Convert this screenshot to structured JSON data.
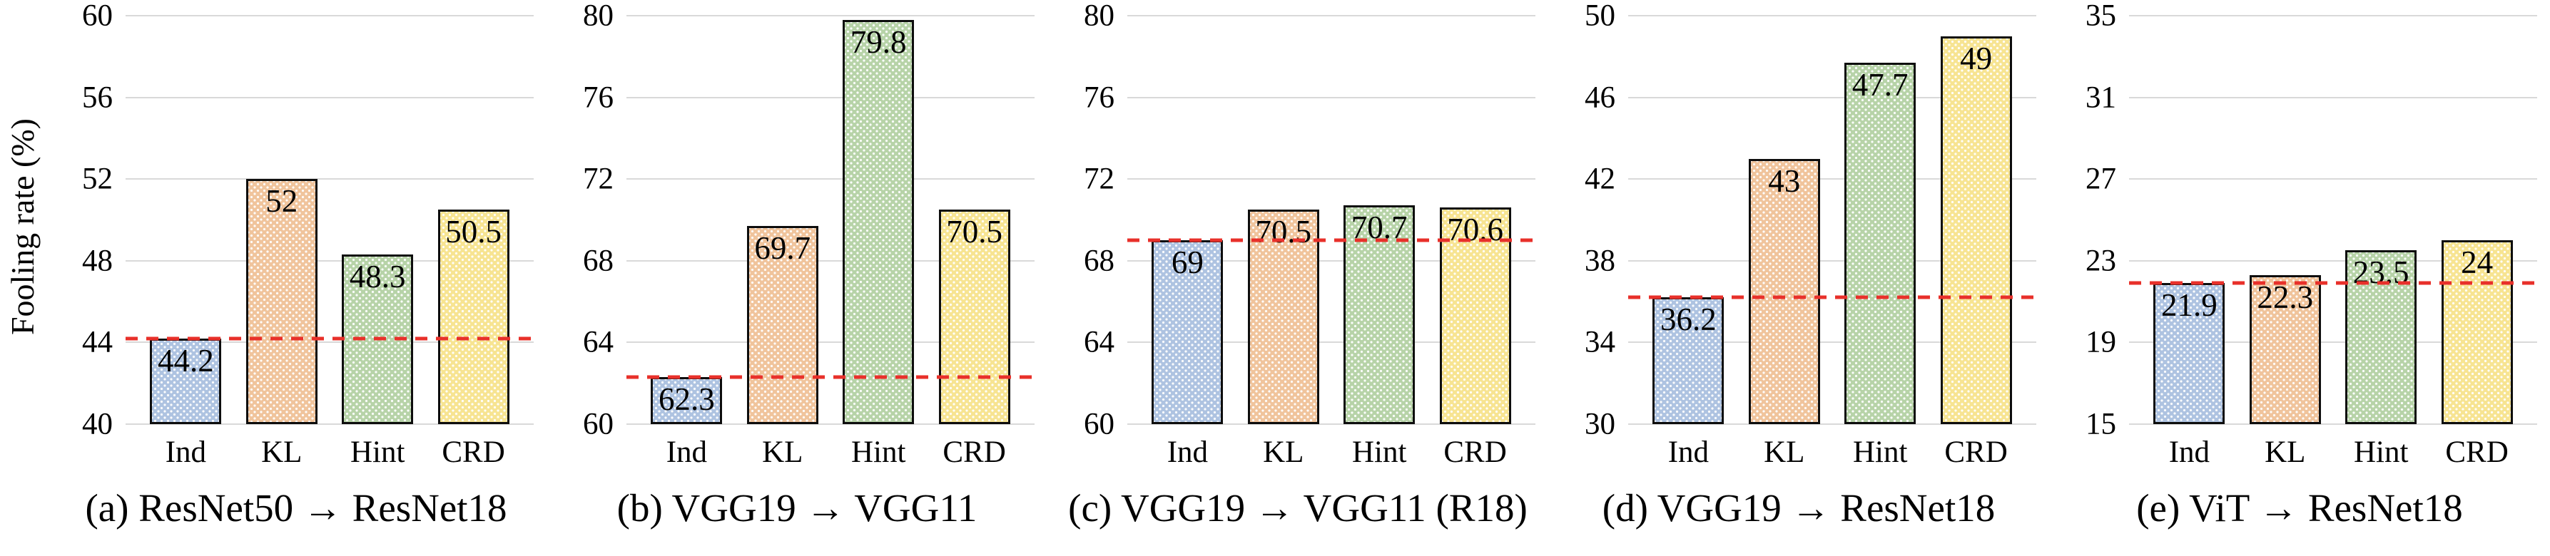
{
  "figure": {
    "ylabel": "Fooling rate (%)",
    "colors": {
      "bar_fills": [
        "#aec3e1",
        "#f0c49c",
        "#b7d3a8",
        "#f7e492"
      ],
      "bar_border": "#0d0d0d",
      "gridline": "#d9d9d9",
      "baseline_dashed": "#e8302a",
      "text": "#000000"
    }
  },
  "chart_data": [
    {
      "type": "bar",
      "title": "(a) ResNet50 → ResNet18",
      "ylabel": "Fooling rate (%)",
      "xlabel": "",
      "categories": [
        "Ind",
        "KL",
        "Hint",
        "CRD"
      ],
      "values": [
        44.2,
        52,
        48.3,
        50.5
      ],
      "value_labels": [
        "44.2",
        "52",
        "48.3",
        "50.5"
      ],
      "ylim": [
        40,
        60
      ],
      "yticks": [
        40,
        44,
        48,
        52,
        56,
        60
      ],
      "baseline_value": 44.2,
      "grid": true,
      "legend_position": "none"
    },
    {
      "type": "bar",
      "title": "(b) VGG19 → VGG11",
      "ylabel": "Fooling rate (%)",
      "xlabel": "",
      "categories": [
        "Ind",
        "KL",
        "Hint",
        "CRD"
      ],
      "values": [
        62.3,
        69.7,
        79.8,
        70.5
      ],
      "value_labels": [
        "62.3",
        "69.7",
        "79.8",
        "70.5"
      ],
      "ylim": [
        60,
        80
      ],
      "yticks": [
        60,
        64,
        68,
        72,
        76,
        80
      ],
      "baseline_value": 62.3,
      "grid": true,
      "legend_position": "none"
    },
    {
      "type": "bar",
      "title": "(c) VGG19 → VGG11 (R18)",
      "ylabel": "Fooling rate (%)",
      "xlabel": "",
      "categories": [
        "Ind",
        "KL",
        "Hint",
        "CRD"
      ],
      "values": [
        69,
        70.5,
        70.7,
        70.6
      ],
      "value_labels": [
        "69",
        "70.5",
        "70.7",
        "70.6"
      ],
      "ylim": [
        60,
        80
      ],
      "yticks": [
        60,
        64,
        68,
        72,
        76,
        80
      ],
      "baseline_value": 69,
      "grid": true,
      "legend_position": "none"
    },
    {
      "type": "bar",
      "title": "(d) VGG19 → ResNet18",
      "ylabel": "Fooling rate (%)",
      "xlabel": "",
      "categories": [
        "Ind",
        "KL",
        "Hint",
        "CRD"
      ],
      "values": [
        36.2,
        43,
        47.7,
        49
      ],
      "value_labels": [
        "36.2",
        "43",
        "47.7",
        "49"
      ],
      "ylim": [
        30,
        50
      ],
      "yticks": [
        30,
        34,
        38,
        42,
        46,
        50
      ],
      "baseline_value": 36.2,
      "grid": true,
      "legend_position": "none"
    },
    {
      "type": "bar",
      "title": "(e) ViT → ResNet18",
      "ylabel": "Fooling rate (%)",
      "xlabel": "",
      "categories": [
        "Ind",
        "KL",
        "Hint",
        "CRD"
      ],
      "values": [
        21.9,
        22.3,
        23.5,
        24
      ],
      "value_labels": [
        "21.9",
        "22.3",
        "23.5",
        "24"
      ],
      "ylim": [
        15,
        35
      ],
      "yticks": [
        15,
        19,
        23,
        27,
        31,
        35
      ],
      "baseline_value": 21.9,
      "grid": true,
      "legend_position": "none"
    }
  ]
}
